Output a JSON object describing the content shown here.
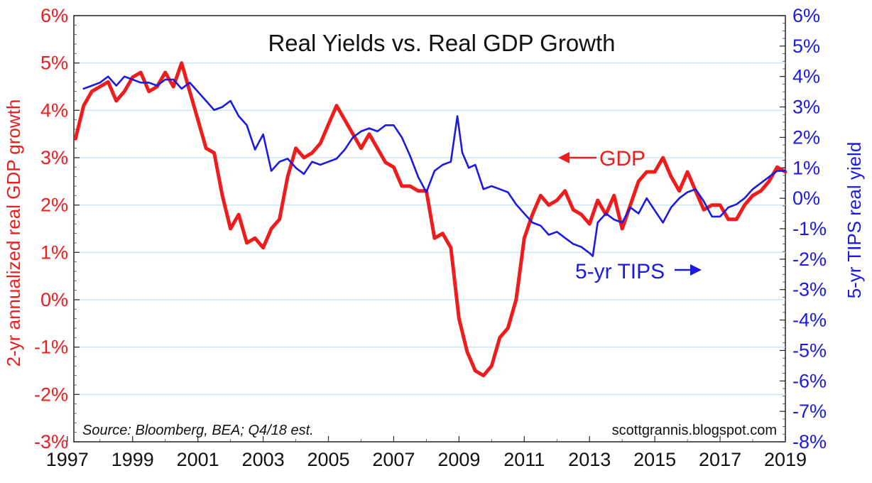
{
  "chart_data": {
    "type": "line",
    "title": "Real Yields vs. Real GDP Growth",
    "ylabel_left": "2-yr annualized real GDP growth",
    "ylabel_right": "5-yr TIPS real yield",
    "xlim": [
      1997.2,
      2019.0
    ],
    "ylim_left": [
      -3,
      6
    ],
    "ylim_right": [
      -8,
      6
    ],
    "x_ticks": [
      "1997",
      "1999",
      "2001",
      "2003",
      "2005",
      "2007",
      "2009",
      "2011",
      "2013",
      "2015",
      "2017",
      "2019"
    ],
    "x_tick_values": [
      1997,
      1999,
      2001,
      2003,
      2005,
      2007,
      2009,
      2011,
      2013,
      2015,
      2017,
      2019
    ],
    "y_left_ticks": [
      "6%",
      "5%",
      "4%",
      "3%",
      "2%",
      "1%",
      "0%",
      "-1%",
      "-2%",
      "-3%"
    ],
    "y_left_tick_values": [
      6,
      5,
      4,
      3,
      2,
      1,
      0,
      -1,
      -2,
      -3
    ],
    "y_right_ticks": [
      "6%",
      "5%",
      "4%",
      "3%",
      "2%",
      "1%",
      "0%",
      "-1%",
      "-2%",
      "-3%",
      "-4%",
      "-5%",
      "-6%",
      "-7%",
      "-8%"
    ],
    "y_right_tick_values": [
      6,
      5,
      4,
      3,
      2,
      1,
      0,
      -1,
      -2,
      -3,
      -4,
      -5,
      -6,
      -7,
      -8
    ],
    "grid": true,
    "annotations": {
      "gdp_label": "GDP",
      "tips_label": "5-yr TIPS",
      "source": "Source: Bloomberg, BEA; Q4/18 est.",
      "website": "scottgrannis.blogspot.com"
    },
    "series": [
      {
        "name": "GDP",
        "axis": "left",
        "color": "#ee1c1c",
        "x": [
          1997.25,
          1997.5,
          1997.75,
          1998.0,
          1998.25,
          1998.5,
          1998.75,
          1999.0,
          1999.25,
          1999.5,
          1999.75,
          2000.0,
          2000.25,
          2000.5,
          2000.75,
          2001.0,
          2001.25,
          2001.5,
          2001.75,
          2002.0,
          2002.25,
          2002.5,
          2002.75,
          2003.0,
          2003.25,
          2003.5,
          2003.75,
          2004.0,
          2004.25,
          2004.5,
          2004.75,
          2005.0,
          2005.25,
          2005.5,
          2005.75,
          2006.0,
          2006.25,
          2006.5,
          2006.75,
          2007.0,
          2007.25,
          2007.5,
          2007.75,
          2008.0,
          2008.25,
          2008.5,
          2008.75,
          2009.0,
          2009.25,
          2009.5,
          2009.75,
          2010.0,
          2010.25,
          2010.5,
          2010.75,
          2011.0,
          2011.25,
          2011.5,
          2011.75,
          2012.0,
          2012.25,
          2012.5,
          2012.75,
          2013.0,
          2013.25,
          2013.5,
          2013.75,
          2014.0,
          2014.25,
          2014.5,
          2014.75,
          2015.0,
          2015.25,
          2015.5,
          2015.75,
          2016.0,
          2016.25,
          2016.5,
          2016.75,
          2017.0,
          2017.25,
          2017.5,
          2017.75,
          2018.0,
          2018.25,
          2018.5,
          2018.75,
          2019.0
        ],
        "values": [
          3.4,
          4.1,
          4.4,
          4.5,
          4.6,
          4.2,
          4.4,
          4.7,
          4.8,
          4.4,
          4.5,
          4.8,
          4.5,
          5.0,
          4.4,
          3.8,
          3.2,
          3.1,
          2.2,
          1.5,
          1.8,
          1.2,
          1.3,
          1.1,
          1.5,
          1.7,
          2.6,
          3.2,
          3.0,
          3.1,
          3.3,
          3.7,
          4.1,
          3.8,
          3.5,
          3.2,
          3.5,
          3.2,
          2.9,
          2.8,
          2.4,
          2.4,
          2.3,
          2.3,
          1.3,
          1.4,
          1.1,
          -0.4,
          -1.1,
          -1.5,
          -1.6,
          -1.4,
          -0.8,
          -0.6,
          0.0,
          1.3,
          1.8,
          2.2,
          2.0,
          2.1,
          2.3,
          1.9,
          1.8,
          1.6,
          2.1,
          1.8,
          2.2,
          1.5,
          2.0,
          2.5,
          2.7,
          2.7,
          3.0,
          2.6,
          2.3,
          2.7,
          2.3,
          1.9,
          2.0,
          2.0,
          1.7,
          1.7,
          2.0,
          2.2,
          2.3,
          2.5,
          2.8,
          2.7
        ]
      },
      {
        "name": "5-yr TIPS",
        "axis": "right",
        "color": "#1a1ae0",
        "x": [
          1997.5,
          1997.75,
          1998.0,
          1998.25,
          1998.5,
          1998.75,
          1999.0,
          1999.25,
          1999.5,
          1999.75,
          2000.0,
          2000.25,
          2000.5,
          2000.75,
          2001.0,
          2001.25,
          2001.5,
          2001.75,
          2002.0,
          2002.25,
          2002.5,
          2002.75,
          2003.0,
          2003.25,
          2003.5,
          2003.75,
          2004.0,
          2004.25,
          2004.5,
          2004.75,
          2005.0,
          2005.25,
          2005.5,
          2005.75,
          2006.0,
          2006.25,
          2006.5,
          2006.75,
          2007.0,
          2007.25,
          2007.5,
          2007.75,
          2008.0,
          2008.25,
          2008.5,
          2008.75,
          2008.95,
          2009.1,
          2009.3,
          2009.5,
          2009.75,
          2010.0,
          2010.25,
          2010.5,
          2010.75,
          2011.0,
          2011.25,
          2011.5,
          2011.75,
          2012.0,
          2012.25,
          2012.5,
          2012.75,
          2013.0,
          2013.1,
          2013.25,
          2013.5,
          2013.75,
          2014.0,
          2014.25,
          2014.5,
          2014.75,
          2015.0,
          2015.25,
          2015.5,
          2015.75,
          2016.0,
          2016.25,
          2016.5,
          2016.75,
          2017.0,
          2017.25,
          2017.5,
          2017.75,
          2018.0,
          2018.25,
          2018.5,
          2018.75,
          2019.0
        ],
        "values": [
          3.6,
          3.7,
          3.8,
          4.0,
          3.7,
          4.0,
          3.9,
          3.8,
          3.8,
          3.7,
          3.9,
          3.9,
          3.6,
          3.8,
          3.5,
          3.2,
          2.9,
          3.0,
          3.2,
          2.7,
          2.4,
          1.6,
          2.1,
          0.9,
          1.2,
          1.3,
          1.0,
          0.8,
          1.2,
          1.1,
          1.2,
          1.3,
          1.6,
          2.0,
          2.2,
          2.3,
          2.2,
          2.4,
          2.4,
          2.0,
          1.4,
          0.7,
          0.2,
          0.9,
          1.1,
          1.2,
          2.7,
          1.5,
          1.0,
          1.1,
          0.3,
          0.4,
          0.3,
          0.2,
          -0.2,
          -0.5,
          -0.8,
          -0.9,
          -1.2,
          -1.1,
          -1.3,
          -1.5,
          -1.6,
          -1.8,
          -1.9,
          -0.8,
          -0.5,
          -0.7,
          -0.8,
          -0.3,
          -0.5,
          0.0,
          -0.4,
          -0.8,
          -0.3,
          0.0,
          0.2,
          0.3,
          -0.1,
          -0.6,
          -0.6,
          -0.3,
          -0.2,
          0.0,
          0.3,
          0.5,
          0.7,
          0.9,
          0.9
        ]
      }
    ]
  }
}
